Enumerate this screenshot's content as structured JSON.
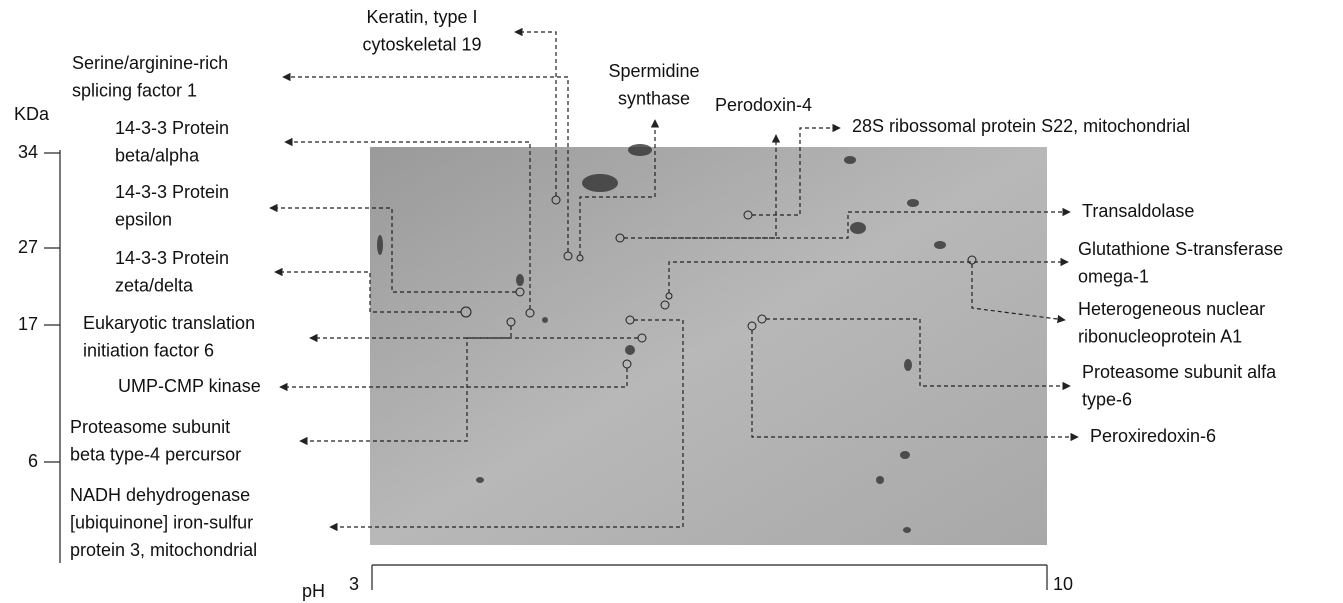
{
  "y_axis": {
    "unit": "KDa",
    "ticks": [
      "34",
      "27",
      "17",
      "6"
    ]
  },
  "x_axis": {
    "unit": "pH",
    "ticks": [
      "3",
      "10"
    ]
  },
  "labels": [
    {
      "lines": [
        "Keratin, type I",
        "cytoskeletal 19"
      ]
    },
    {
      "lines": [
        "Serine/arginine-rich",
        "splicing factor 1"
      ]
    },
    {
      "lines": [
        "14-3-3 Protein",
        "beta/alpha"
      ]
    },
    {
      "lines": [
        "14-3-3 Protein",
        "epsilon"
      ]
    },
    {
      "lines": [
        "14-3-3 Protein",
        "zeta/delta"
      ]
    },
    {
      "lines": [
        "Eukaryotic translation",
        "initiation factor 6"
      ]
    },
    {
      "lines": [
        "UMP-CMP kinase"
      ]
    },
    {
      "lines": [
        "Proteasome subunit",
        "beta type-4 percursor"
      ]
    },
    {
      "lines": [
        "NADH dehydrogenase",
        "[ubiquinone] iron-sulfur",
        "protein 3, mitochondrial"
      ]
    },
    {
      "lines": [
        "Spermidine",
        "synthase"
      ]
    },
    {
      "lines": [
        "Perodoxin-4"
      ]
    },
    {
      "lines": [
        "28S ribossomal protein S22, mitochondrial"
      ]
    },
    {
      "lines": [
        "Transaldolase"
      ]
    },
    {
      "lines": [
        "Glutathione S-transferase",
        "omega-1"
      ]
    },
    {
      "lines": [
        "Heterogeneous nuclear",
        "ribonucleoprotein A1"
      ]
    },
    {
      "lines": [
        "Proteasome subunit alfa",
        "type-6"
      ]
    },
    {
      "lines": [
        "Peroxiredoxin-6"
      ]
    }
  ]
}
